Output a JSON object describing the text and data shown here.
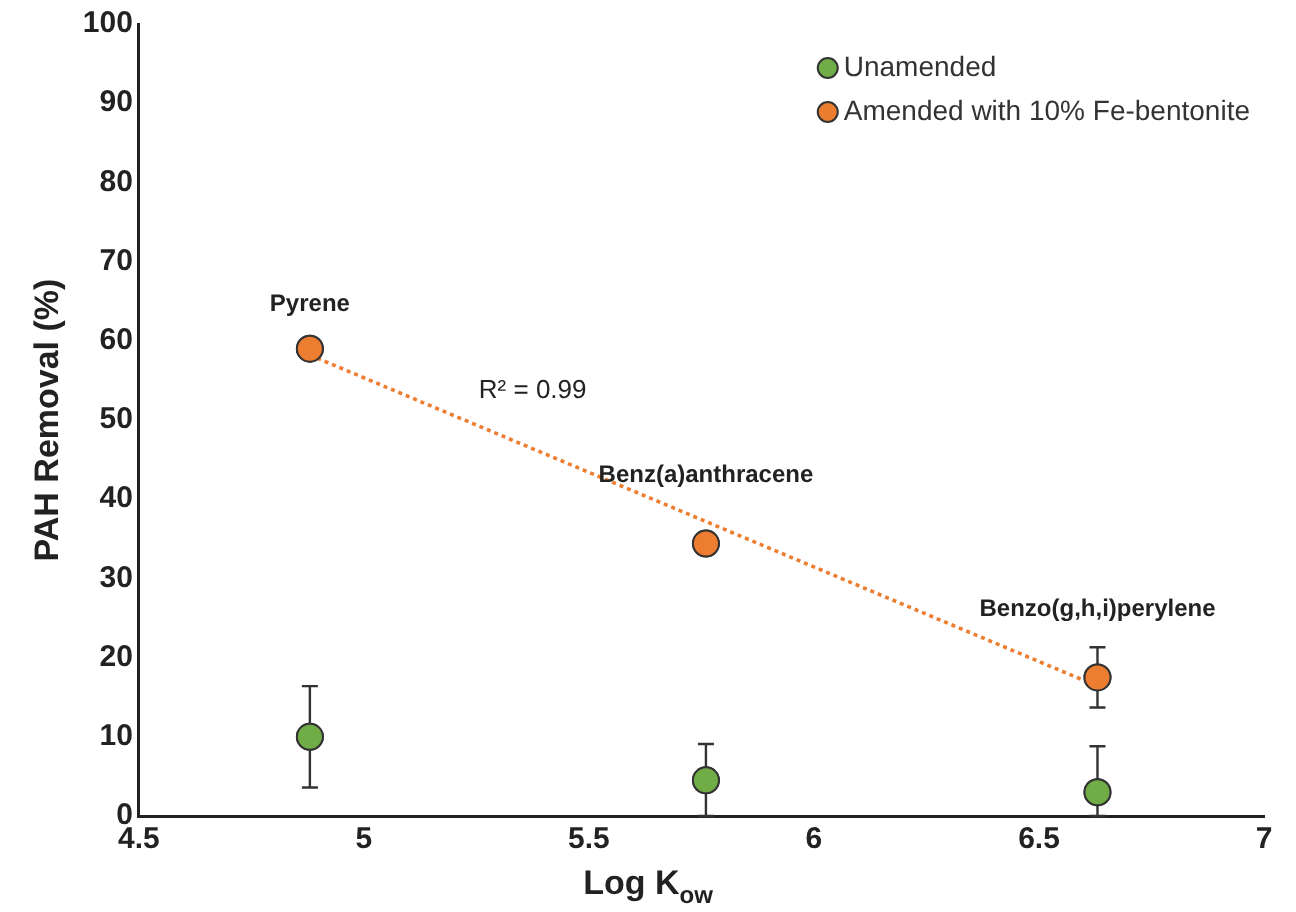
{
  "chart_data": {
    "type": "scatter",
    "xlabel": "Log K$_{ow}$",
    "ylabel": "PAH Removal (%)",
    "xlim": [
      4.5,
      7
    ],
    "xticks": [
      4.5,
      5,
      5.5,
      6,
      6.5,
      7
    ],
    "ylim": [
      0,
      100
    ],
    "yticks": [
      0,
      10,
      20,
      30,
      40,
      50,
      60,
      70,
      80,
      90,
      100
    ],
    "grid": false,
    "legend": "top right",
    "marker": "circle",
    "series": [
      {
        "name": "Unamended",
        "color": "#70ad47",
        "x": [
          4.88,
          5.76,
          6.63
        ],
        "values": [
          10,
          4.5,
          3
        ],
        "errors": [
          6.4,
          [
            0,
            9.1
          ],
          [
            0,
            8.8
          ]
        ]
      },
      {
        "name": "Amended with 10% Fe-bentonite",
        "color": "#ed7d31",
        "x": [
          4.88,
          5.76,
          6.63
        ],
        "values": [
          59,
          34.4,
          17.5
        ],
        "errors": [
          null,
          null,
          3.8
        ]
      },
      {
        "type": "line",
        "color": "#ed7d31",
        "line_style": "dotted",
        "marker": "none",
        "x": [
          4.88,
          6.63
        ],
        "values": [
          58.2,
          16.4
        ]
      }
    ],
    "annotations": [
      {
        "text": "Pyrene",
        "x": 4.88,
        "y": 59
      },
      {
        "text": "Benz(a)anthracene",
        "x": 5.76,
        "y": 34.4
      },
      {
        "text": "Benzo(g,h,i)perylene",
        "x": 6.63,
        "y": 17.5
      },
      "R² = 0.99"
    ]
  }
}
